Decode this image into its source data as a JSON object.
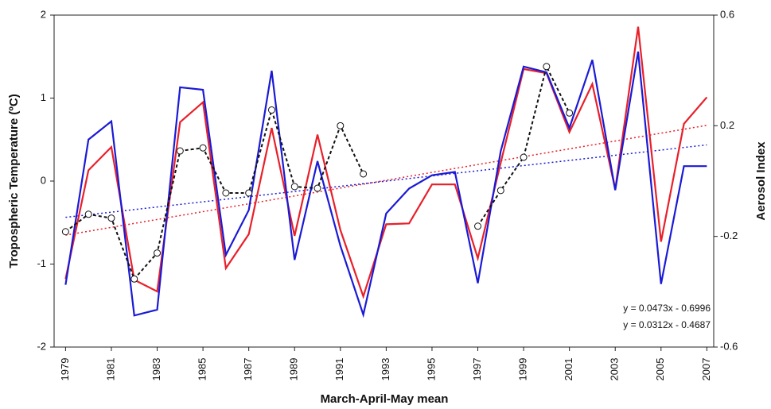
{
  "chart_data": {
    "type": "line",
    "x_label": "March-April-May mean",
    "y_label": "Tropospheric Temperature (ºC)",
    "y2_label": "Aerosol Index",
    "x": [
      1979,
      1980,
      1981,
      1982,
      1983,
      1984,
      1985,
      1986,
      1987,
      1988,
      1989,
      1990,
      1991,
      1992,
      1993,
      1994,
      1995,
      1996,
      1997,
      1998,
      1999,
      2000,
      2001,
      2002,
      2003,
      2004,
      2005,
      2006,
      2007
    ],
    "xlim": [
      1978.5,
      2007.3
    ],
    "xticks": [
      1979,
      1981,
      1983,
      1985,
      1987,
      1989,
      1991,
      1993,
      1995,
      1997,
      1999,
      2001,
      2003,
      2005,
      2007
    ],
    "ylim": [
      -2,
      2
    ],
    "yticks": [
      2,
      1,
      0,
      -1,
      -2
    ],
    "y2lim": [
      -0.6,
      0.6
    ],
    "y2ticks": [
      0.6,
      0.2,
      -0.2,
      -0.6
    ],
    "series": [
      {
        "color": "#e8202a",
        "style": "solid",
        "values": [
          -1.18,
          0.13,
          0.41,
          -1.19,
          -1.33,
          0.71,
          0.95,
          -1.05,
          -0.64,
          0.64,
          -0.66,
          0.56,
          -0.59,
          -1.39,
          -0.52,
          -0.51,
          -0.04,
          -0.04,
          -0.93,
          0.22,
          1.35,
          1.3,
          0.59,
          1.17,
          -0.1,
          1.86,
          -0.73,
          0.69,
          1.01
        ]
      },
      {
        "color": "#1a1ad6",
        "style": "solid",
        "values": [
          -1.25,
          0.5,
          0.72,
          -1.62,
          -1.55,
          1.13,
          1.1,
          -0.89,
          -0.35,
          1.33,
          -0.95,
          0.24,
          -0.78,
          -1.61,
          -0.39,
          -0.09,
          0.07,
          0.11,
          -1.23,
          0.36,
          1.38,
          1.31,
          0.64,
          1.46,
          -0.11,
          1.56,
          -1.24,
          0.18,
          0.18
        ]
      },
      {
        "color": "#111111",
        "style": "dashed",
        "axis": "y2",
        "markers": true,
        "values": [
          -0.183,
          -0.12,
          -0.134,
          -0.354,
          -0.26,
          0.109,
          0.12,
          -0.043,
          -0.043,
          0.257,
          -0.02,
          -0.026,
          0.2,
          0.026,
          null,
          null,
          null,
          null,
          -0.163,
          -0.034,
          0.086,
          0.414,
          0.246,
          null,
          null,
          null,
          null,
          null,
          null
        ]
      }
    ],
    "trendlines": [
      {
        "color": "#e8202a",
        "label": "y = 0.0473x - 0.6996",
        "x": [
          1979,
          2007
        ],
        "values": [
          -0.652,
          0.672
        ]
      },
      {
        "color": "#1a1ad6",
        "label": "y = 0.0312x - 0.4687",
        "x": [
          1979,
          2007
        ],
        "values": [
          -0.437,
          0.436
        ]
      }
    ]
  }
}
